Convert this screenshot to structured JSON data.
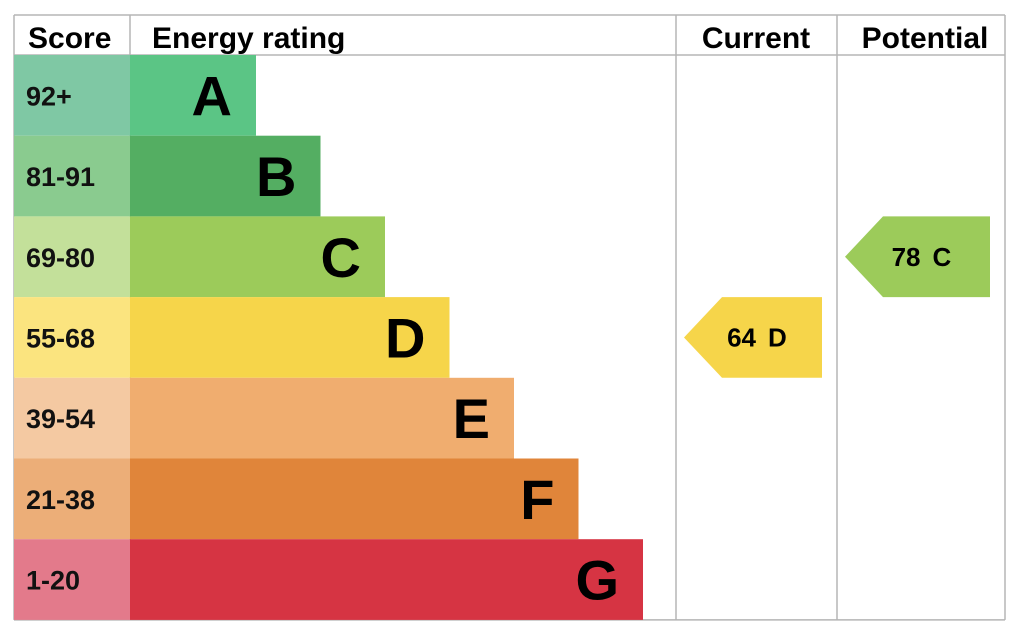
{
  "headers": {
    "score": "Score",
    "rating": "Energy rating",
    "current": "Current",
    "potential": "Potential"
  },
  "chart_data": {
    "type": "bar",
    "bands": [
      {
        "score": "92+",
        "letter": "A",
        "color": "#5bc585",
        "score_bg": "#7fc8a4"
      },
      {
        "score": "81-91",
        "letter": "B",
        "color": "#54ae62",
        "score_bg": "#8acb8f"
      },
      {
        "score": "69-80",
        "letter": "C",
        "color": "#9ccb5a",
        "score_bg": "#c3e09a"
      },
      {
        "score": "55-68",
        "letter": "D",
        "color": "#f6d54a",
        "score_bg": "#fbe47f"
      },
      {
        "score": "39-54",
        "letter": "E",
        "color": "#f0ad6f",
        "score_bg": "#f4c9a2"
      },
      {
        "score": "21-38",
        "letter": "F",
        "color": "#e0853a",
        "score_bg": "#ecae78"
      },
      {
        "score": "1-20",
        "letter": "G",
        "color": "#d63443",
        "score_bg": "#e37a8b"
      }
    ],
    "current": {
      "value": 64,
      "letter": "D",
      "color": "#f6d54a"
    },
    "potential": {
      "value": 78,
      "letter": "C",
      "color": "#9ccb5a"
    }
  }
}
